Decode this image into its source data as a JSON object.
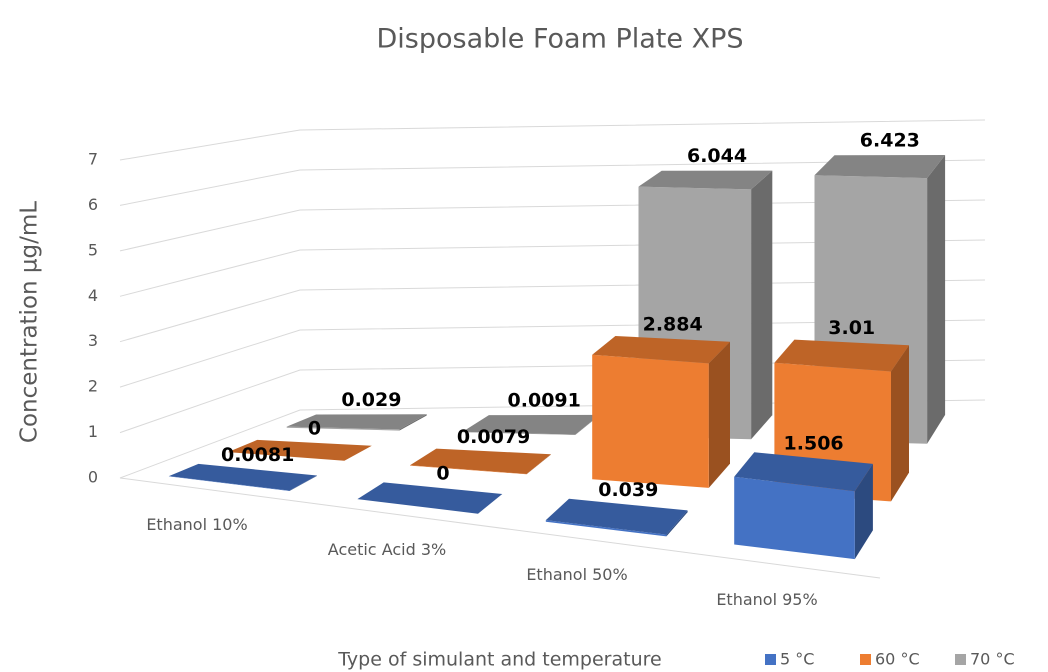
{
  "chart_data": {
    "type": "bar3d",
    "title": "Disposable Foam Plate XPS",
    "y_label": "Concentration µg/mL",
    "x_label": "Type of simulant and temperature",
    "categories": [
      "Ethanol 10%",
      "Acetic Acid 3%",
      "Ethanol 50%",
      "Ethanol 95%"
    ],
    "series": [
      {
        "name": "5 °C",
        "color": "#4472c4",
        "values": [
          0.0081,
          0,
          0.039,
          1.506
        ]
      },
      {
        "name": "60 °C",
        "color": "#ed7d31",
        "values": [
          0,
          0.0079,
          2.884,
          3.01
        ]
      },
      {
        "name": "70 °C",
        "color": "#a5a5a5",
        "values": [
          0.029,
          0.0091,
          6.044,
          6.423
        ]
      }
    ],
    "ylim": [
      0,
      7
    ],
    "yticks": [
      0,
      1,
      2,
      3,
      4,
      5,
      6,
      7
    ],
    "grid": true,
    "legend": "bottom-right"
  }
}
